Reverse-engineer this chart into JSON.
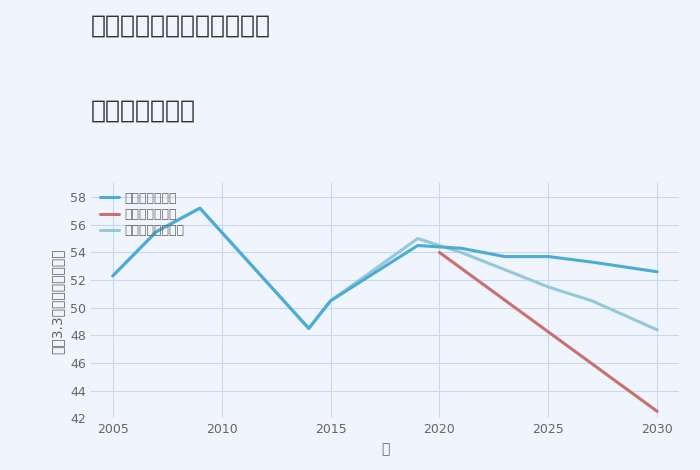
{
  "title_line1": "大阪府東大阪市花園西町の",
  "title_line2": "土地の価格推移",
  "xlabel": "年",
  "ylabel": "平（3.3㎡）単価（万円）",
  "ylim": [
    42,
    59
  ],
  "yticks": [
    42,
    44,
    46,
    48,
    50,
    52,
    54,
    56,
    58
  ],
  "xlim": [
    2004,
    2031
  ],
  "xticks": [
    2005,
    2010,
    2015,
    2020,
    2025,
    2030
  ],
  "background_color": "#f0f4fc",
  "plot_bg_color": "#f0f4fc",
  "grid_color": "#c8d8ee",
  "series": {
    "good": {
      "label": "グッドシナリオ",
      "color": "#4bacd6",
      "linewidth": 2.2,
      "x": [
        2005,
        2007,
        2009,
        2014,
        2015,
        2019,
        2021,
        2023,
        2025,
        2027,
        2030
      ],
      "y": [
        52.3,
        55.5,
        57.2,
        48.5,
        50.5,
        54.5,
        54.3,
        53.7,
        53.7,
        53.3,
        52.6
      ]
    },
    "bad": {
      "label": "バッドシナリオ",
      "color": "#c97070",
      "linewidth": 2.2,
      "x": [
        2020,
        2030
      ],
      "y": [
        54.0,
        42.5
      ]
    },
    "normal": {
      "label": "ノーマルシナリオ",
      "color": "#93c9d8",
      "linewidth": 2.2,
      "x": [
        2005,
        2007,
        2009,
        2014,
        2015,
        2019,
        2021,
        2025,
        2027,
        2030
      ],
      "y": [
        52.3,
        55.5,
        57.2,
        48.5,
        50.5,
        55.0,
        54.0,
        51.5,
        50.5,
        48.4
      ]
    }
  },
  "legend_fontsize": 9,
  "title_fontsize": 18,
  "axis_fontsize": 10,
  "tick_fontsize": 9,
  "title_color": "#333333",
  "tick_color": "#666666",
  "label_color": "#666666"
}
